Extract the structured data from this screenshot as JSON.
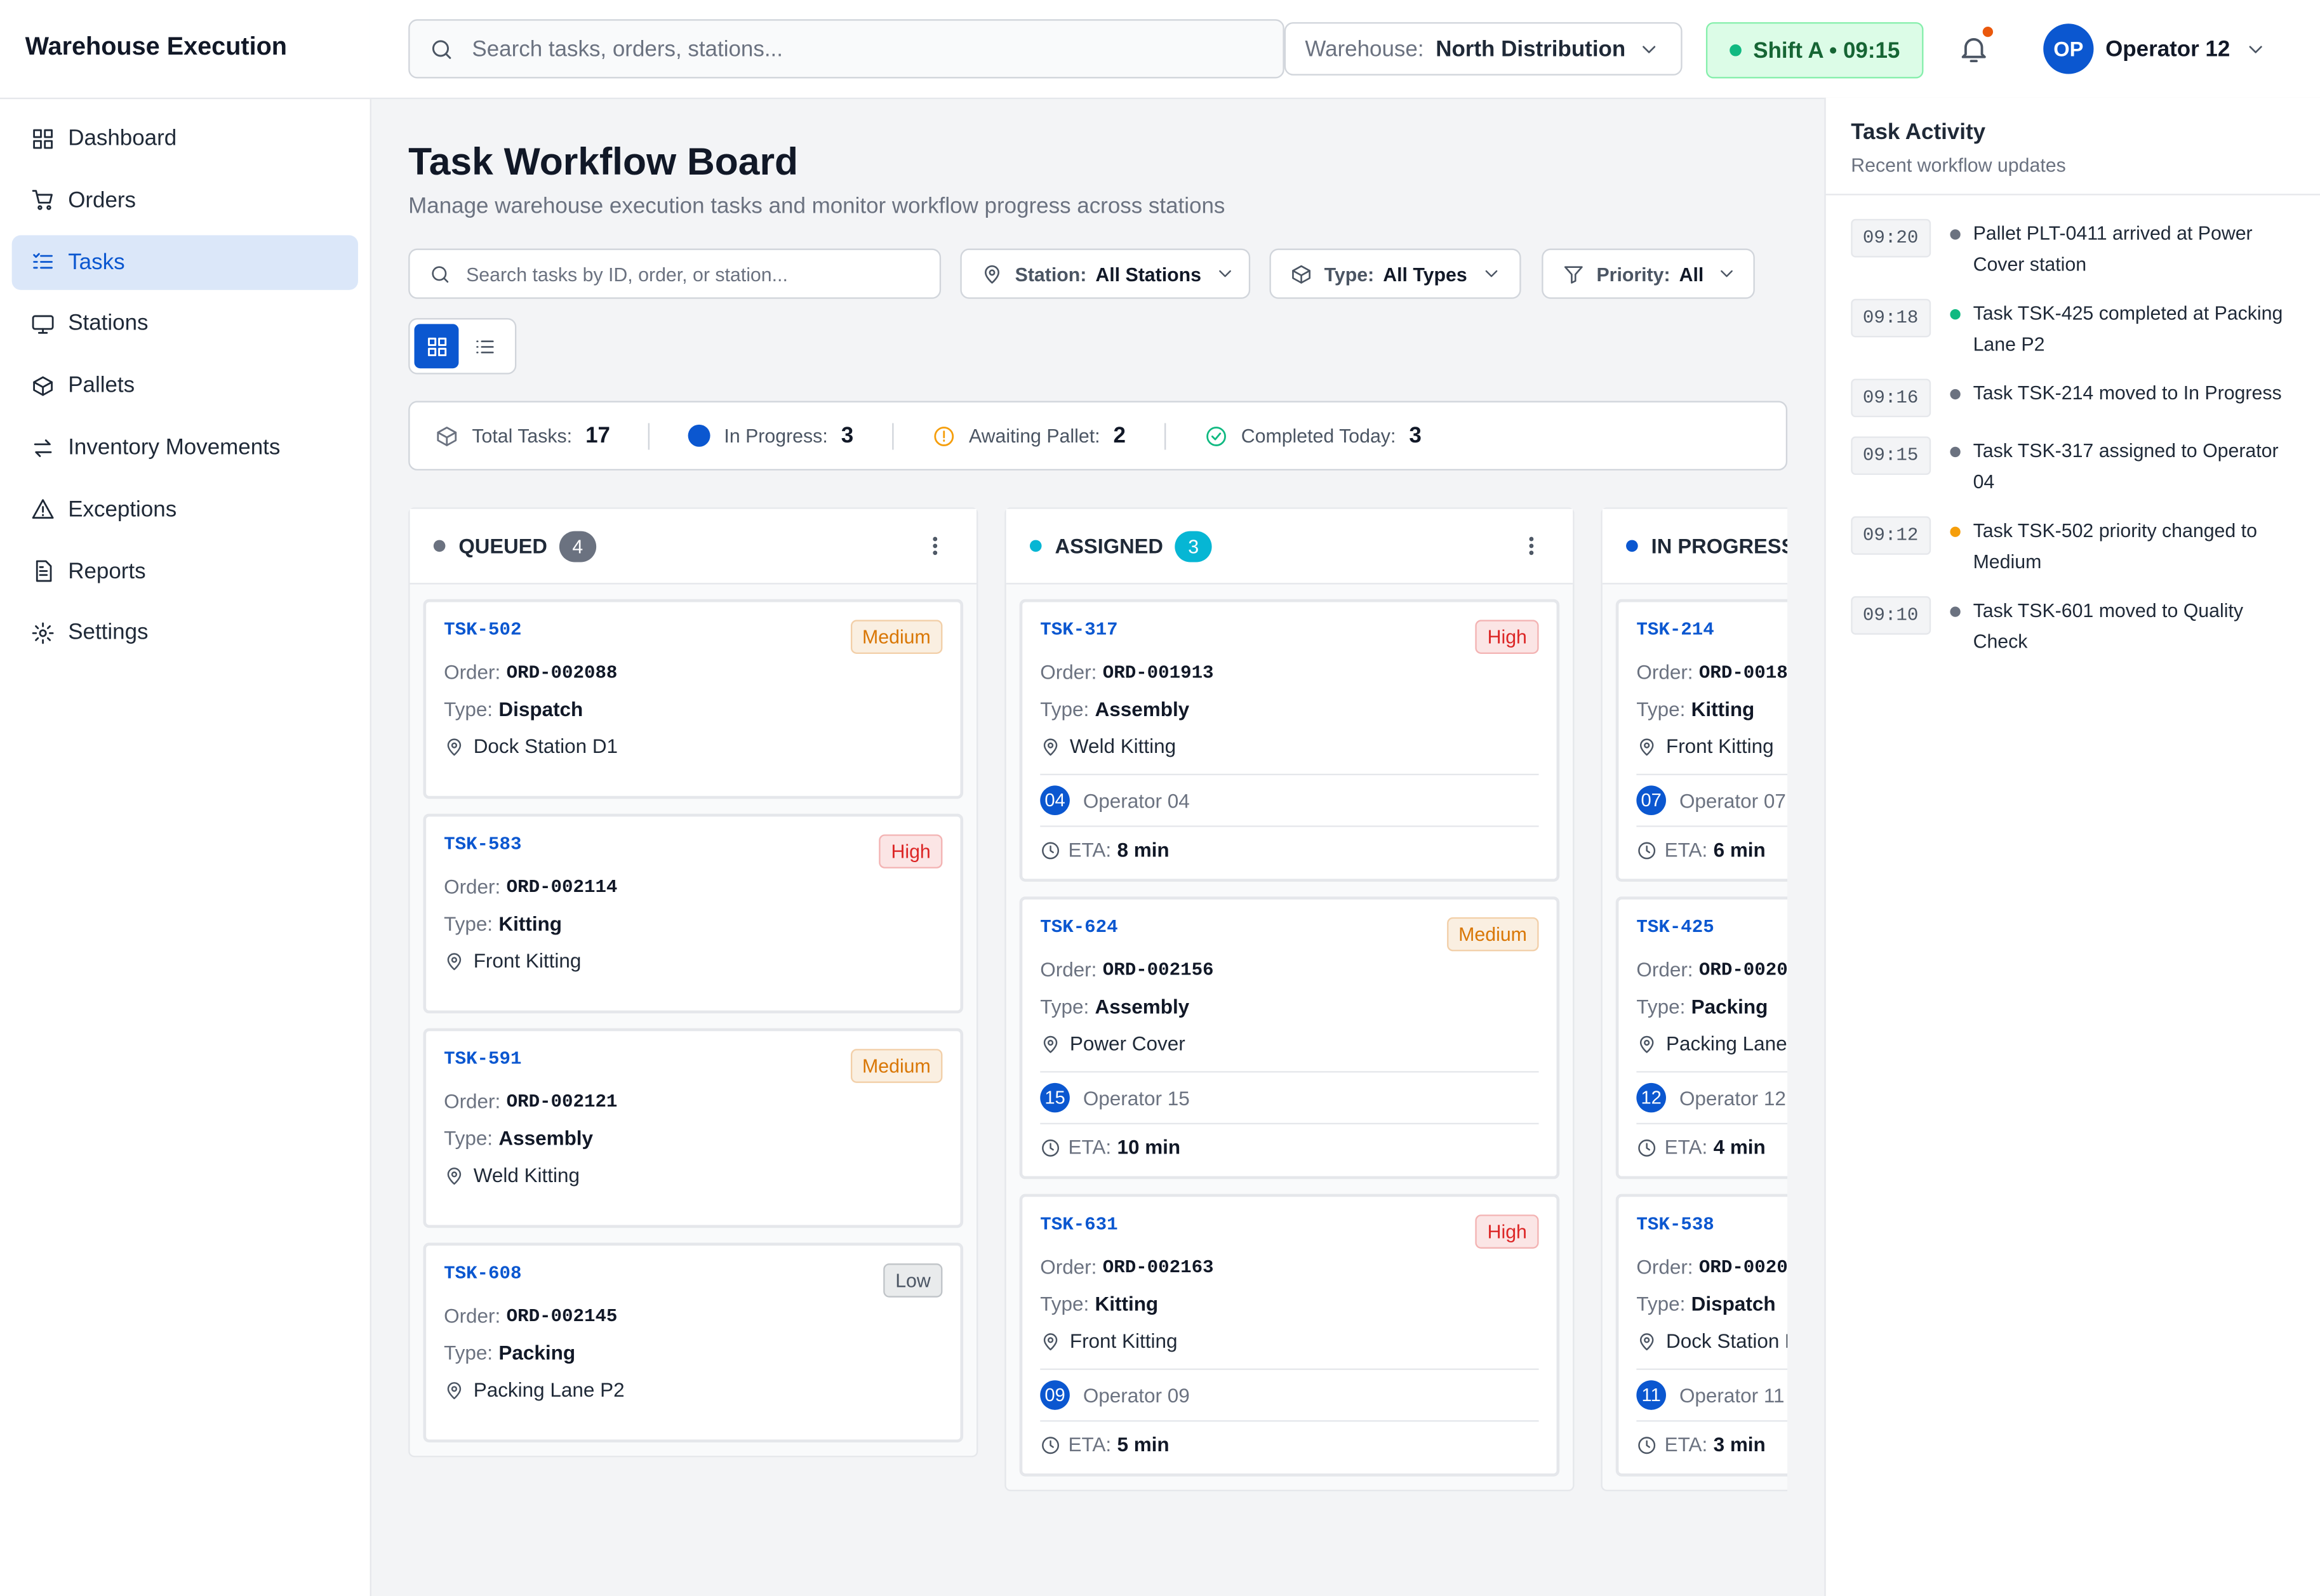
{
  "sidebar": {
    "brand": "Warehouse Execution",
    "nav": [
      {
        "label": "Dashboard",
        "active": false
      },
      {
        "label": "Orders",
        "active": false
      },
      {
        "label": "Tasks",
        "active": true
      },
      {
        "label": "Stations",
        "active": false
      },
      {
        "label": "Pallets",
        "active": false
      },
      {
        "label": "Inventory Movements",
        "active": false
      },
      {
        "label": "Exceptions",
        "active": false
      },
      {
        "label": "Reports",
        "active": false
      },
      {
        "label": "Settings",
        "active": false
      }
    ]
  },
  "topbar": {
    "search_placeholder": "Search tasks, orders, stations...",
    "warehouse_label": "Warehouse:",
    "warehouse_value": "North Distribution",
    "shift": "Shift A • 09:15",
    "user_initials": "OP",
    "user_name": "Operator 12"
  },
  "main": {
    "title": "Task Workflow Board",
    "subtitle": "Manage warehouse execution tasks and monitor workflow progress across stations",
    "search_placeholder": "Search tasks by ID, order, or station...",
    "filters": [
      {
        "label": "Station:",
        "value": "All Stations"
      },
      {
        "label": "Type:",
        "value": "All Types"
      },
      {
        "label": "Priority:",
        "value": "All"
      }
    ],
    "stats": [
      {
        "label": "Total Tasks:",
        "value": "17",
        "color": "#6b7280"
      },
      {
        "label": "In Progress:",
        "value": "3",
        "color": "#0b57d0"
      },
      {
        "label": "Awaiting Pallet:",
        "value": "2",
        "color": "#f59e0b"
      },
      {
        "label": "Completed Today:",
        "value": "3",
        "color": "#10b981"
      }
    ],
    "labels": {
      "order": "Order:",
      "type": "Type:",
      "eta": "ETA:"
    },
    "columns": [
      {
        "name": "QUEUED",
        "count": "4",
        "color": "#6b7280",
        "cards": [
          {
            "id": "TSK-502",
            "priority": "Medium",
            "priority_color": "#d97706",
            "order": "ORD-002088",
            "type": "Dispatch",
            "station": "Dock Station D1"
          },
          {
            "id": "TSK-583",
            "priority": "High",
            "priority_color": "#dc2626",
            "order": "ORD-002114",
            "type": "Kitting",
            "station": "Front Kitting"
          },
          {
            "id": "TSK-591",
            "priority": "Medium",
            "priority_color": "#d97706",
            "order": "ORD-002121",
            "type": "Assembly",
            "station": "Weld Kitting"
          },
          {
            "id": "TSK-608",
            "priority": "Low",
            "priority_color": "#4b5563",
            "order": "ORD-002145",
            "type": "Packing",
            "station": "Packing Lane P2"
          }
        ]
      },
      {
        "name": "ASSIGNED",
        "count": "3",
        "color": "#06b6d4",
        "cards": [
          {
            "id": "TSK-317",
            "priority": "High",
            "priority_color": "#dc2626",
            "order": "ORD-001913",
            "type": "Assembly",
            "station": "Weld Kitting",
            "operator_badge": "04",
            "operator": "Operator 04",
            "eta": "8 min"
          },
          {
            "id": "TSK-624",
            "priority": "Medium",
            "priority_color": "#d97706",
            "order": "ORD-002156",
            "type": "Assembly",
            "station": "Power Cover",
            "operator_badge": "15",
            "operator": "Operator 15",
            "eta": "10 min"
          },
          {
            "id": "TSK-631",
            "priority": "High",
            "priority_color": "#dc2626",
            "order": "ORD-002163",
            "type": "Kitting",
            "station": "Front Kitting",
            "operator_badge": "09",
            "operator": "Operator 09",
            "eta": "5 min"
          }
        ]
      },
      {
        "name": "IN PROGRESS",
        "color": "#0b57d0",
        "cards": [
          {
            "id": "TSK-214",
            "order": "ORD-0018",
            "type": "Kitting",
            "station": "Front Kitting",
            "operator_badge": "07",
            "operator": "Operator 07",
            "eta": "6 min"
          },
          {
            "id": "TSK-425",
            "order": "ORD-0020",
            "type": "Packing",
            "station": "Packing Lane",
            "operator_badge": "12",
            "operator": "Operator 12",
            "eta": "4 min"
          },
          {
            "id": "TSK-538",
            "order": "ORD-0020",
            "type": "Dispatch",
            "station": "Dock Station D",
            "operator_badge": "11",
            "operator": "Operator 11",
            "eta": "3 min"
          }
        ]
      }
    ]
  },
  "activity": {
    "title": "Task Activity",
    "subtitle": "Recent workflow updates",
    "items": [
      {
        "time": "09:20",
        "text": "Pallet PLT-0411 arrived at Power Cover station",
        "color": "#6b7280"
      },
      {
        "time": "09:18",
        "text": "Task TSK-425 completed at Packing Lane P2",
        "color": "#10b981"
      },
      {
        "time": "09:16",
        "text": "Task TSK-214 moved to In Progress",
        "color": "#6b7280"
      },
      {
        "time": "09:15",
        "text": "Task TSK-317 assigned to Operator 04",
        "color": "#6b7280"
      },
      {
        "time": "09:12",
        "text": "Task TSK-502 priority changed to Medium",
        "color": "#f59e0b"
      },
      {
        "time": "09:10",
        "text": "Task TSK-601 moved to Quality Check",
        "color": "#6b7280"
      }
    ]
  }
}
